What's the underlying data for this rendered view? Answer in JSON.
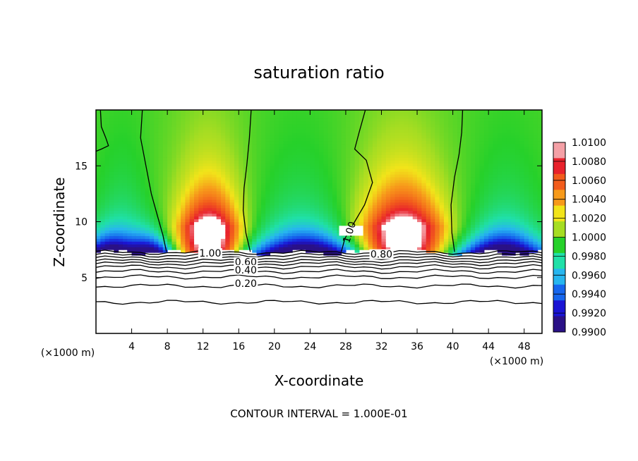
{
  "chart_data": {
    "type": "heatmap",
    "title": "saturation ratio",
    "xlabel": "X-coordinate",
    "ylabel": "Z-coordinate",
    "x_unit": "(×1000 m)",
    "y_unit": "(×1000 m)",
    "xlim": [
      0,
      50
    ],
    "ylim": [
      0,
      20
    ],
    "x_ticks": [
      4,
      8,
      12,
      16,
      20,
      24,
      28,
      32,
      36,
      40,
      44,
      48
    ],
    "y_ticks": [
      5,
      10,
      15
    ],
    "colorbar": {
      "levels": [
        "1.0100",
        "1.0080",
        "1.0060",
        "1.0040",
        "1.0020",
        "1.0000",
        "0.9980",
        "0.9960",
        "0.9940",
        "0.9920",
        "0.9900"
      ],
      "colors": [
        "#f4a0a6",
        "#e8222c",
        "#f25c1c",
        "#f79a1b",
        "#f2e41a",
        "#a6dd22",
        "#26d12a",
        "#20e0a8",
        "#27b6ef",
        "#1666ee",
        "#1a14d4",
        "#2a1186"
      ]
    },
    "contour_labels": [
      {
        "text": "1.00",
        "x": 12.8,
        "z": 7.0
      },
      {
        "text": "1.00",
        "x": 28.6,
        "z": 9.0
      },
      {
        "text": "0.80",
        "x": 32.0,
        "z": 6.9
      },
      {
        "text": "0.60",
        "x": 16.8,
        "z": 6.2
      },
      {
        "text": "0.40",
        "x": 16.8,
        "z": 5.5
      },
      {
        "text": "0.20",
        "x": 16.8,
        "z": 4.3
      }
    ],
    "footer": "CONTOUR INTERVAL = 1.000E-01"
  }
}
